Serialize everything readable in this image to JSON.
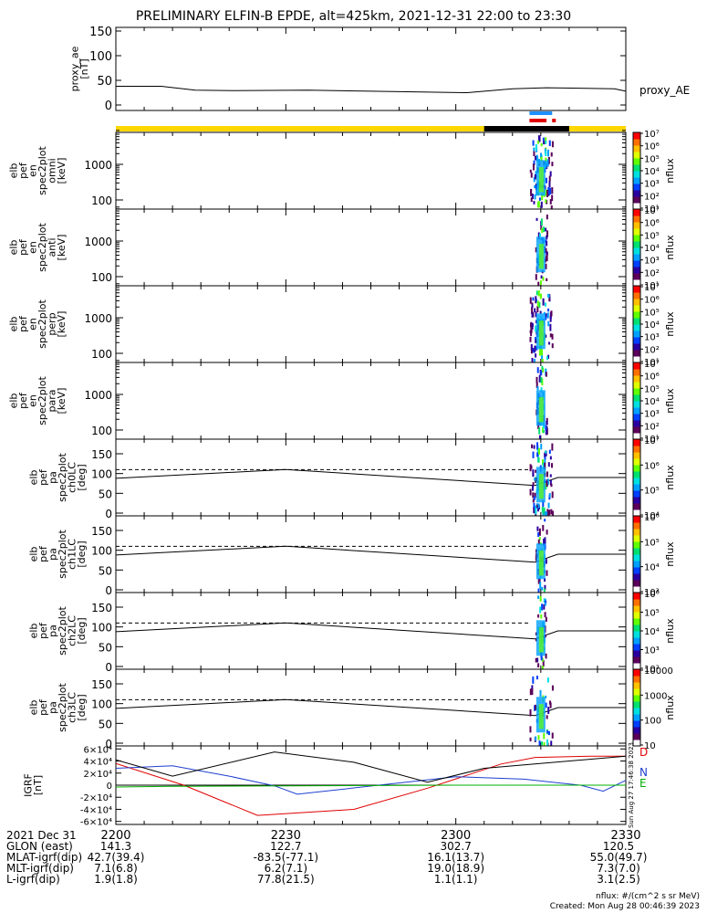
{
  "page": {
    "title": "PRELIMINARY ELFIN-B EPDE, alt=425km, 2021-12-31 22:00 to 23:30",
    "side_stamp": "Sun Aug 27 17:46:38 2023",
    "flux_units_note": "nflux: #/(cm^2 s sr MeV)",
    "created_note": "Created: Mon Aug 28 00:46:39 2023"
  },
  "colors": {
    "orbit_bar_day": "#ffd700",
    "orbit_bar_night": "#000000",
    "science_zone_blue": "#1e90ff",
    "science_zone_red": "#e00000",
    "bz_color": "#000000",
    "bn_color": "#1f3fd0",
    "be_color": "#00b000",
    "bd_color": "#e00000"
  },
  "footer": {
    "date_label": "2021 Dec 31",
    "rows": [
      {
        "label": "GLON (east)",
        "values": [
          "141.3",
          "122.7",
          "302.7",
          "120.5"
        ]
      },
      {
        "label": "MLAT-igrf(dip)",
        "values": [
          "42.7(39.4)",
          "-83.5(-77.1)",
          "16.1(13.7)",
          "55.0(49.7)"
        ]
      },
      {
        "label": "MLT-igrf(dip)",
        "values": [
          "7.1(6.8)",
          "6.2(7.1)",
          "19.0(18.9)",
          "7.3(7.0)"
        ]
      },
      {
        "label": "L-igrf(dip)",
        "values": [
          "1.9(1.8)",
          "77.8(21.5)",
          "1.1(1.1)",
          "3.1(2.5)"
        ]
      }
    ]
  },
  "chart_data": [
    {
      "type": "line",
      "panel": "proxy_ae",
      "ylabel": [
        "proxy_ae",
        "[nT]"
      ],
      "series": [
        {
          "name": "proxy_AE",
          "x": [
            "22:00",
            "22:08",
            "22:14",
            "22:21",
            "22:34",
            "22:45",
            "23:02",
            "23:10",
            "23:16",
            "23:28",
            "23:30"
          ],
          "values": [
            38,
            38,
            30,
            29,
            30,
            28,
            25,
            33,
            35,
            33,
            28
          ]
        }
      ],
      "ylim": [
        0,
        150
      ],
      "yticks": [
        "0",
        "50",
        "100",
        "150"
      ]
    },
    {
      "type": "timeline",
      "panel": "orbit_bars",
      "night_interval": [
        "23:05",
        "23:20"
      ],
      "science_zone_intervals": [
        {
          "color": "blue",
          "from": "23:13",
          "to": "23:17"
        },
        {
          "color": "red",
          "from": "23:13",
          "to": "23:16"
        },
        {
          "color": "red",
          "from": "23:17",
          "to": "23:17.5"
        }
      ]
    },
    {
      "type": "heatmap",
      "panel": "spec_omni",
      "ylabel": [
        "elb",
        "pef",
        "en",
        "spec2plot",
        "omni",
        "[keV]"
      ],
      "yscale": "log",
      "yticks": [
        "100",
        "1000"
      ],
      "colorbar": {
        "label": "nflux",
        "ticks": [
          "10¹",
          "10²",
          "10³",
          "10⁴",
          "10⁵",
          "10⁶",
          "10⁷"
        ]
      },
      "activity_interval": [
        "23:13",
        "23:17"
      ]
    },
    {
      "type": "heatmap",
      "panel": "spec_anti",
      "ylabel": [
        "elb",
        "pef",
        "en",
        "spec2plot",
        "anti",
        "[keV]"
      ],
      "yscale": "log",
      "yticks": [
        "100",
        "1000"
      ],
      "colorbar": {
        "label": "nflux",
        "ticks": [
          "10¹",
          "10²",
          "10³",
          "10⁴",
          "10⁵",
          "10⁶",
          "10⁷"
        ]
      },
      "activity_interval": [
        "23:14",
        "23:16"
      ]
    },
    {
      "type": "heatmap",
      "panel": "spec_perp",
      "ylabel": [
        "elb",
        "pef",
        "en",
        "spec2plot",
        "perp",
        "[keV]"
      ],
      "yscale": "log",
      "yticks": [
        "100",
        "1000"
      ],
      "colorbar": {
        "label": "nflux",
        "ticks": [
          "10¹",
          "10²",
          "10³",
          "10⁴",
          "10⁵",
          "10⁶",
          "10⁷"
        ]
      },
      "activity_interval": [
        "23:13",
        "23:17"
      ]
    },
    {
      "type": "heatmap",
      "panel": "spec_para",
      "ylabel": [
        "elb",
        "pef",
        "en",
        "spec2plot",
        "para",
        "[keV]"
      ],
      "yscale": "log",
      "yticks": [
        "100",
        "1000"
      ],
      "colorbar": {
        "label": "nflux",
        "ticks": [
          "10¹",
          "10²",
          "10³",
          "10⁴",
          "10⁵",
          "10⁶",
          "10⁷"
        ]
      },
      "activity_interval": [
        "23:14",
        "23:16"
      ]
    },
    {
      "type": "heatmap",
      "panel": "pa_ch0",
      "ylabel": [
        "elb",
        "pef",
        "pa",
        "spec2plot",
        "ch0LC",
        "[deg]"
      ],
      "ylim": [
        0,
        180
      ],
      "yticks": [
        "0",
        "50",
        "100",
        "150"
      ],
      "colorbar": {
        "label": "nflux",
        "ticks": [
          "10⁴",
          "10⁵",
          "10⁶",
          "10⁷"
        ]
      },
      "activity_interval": [
        "23:13",
        "23:17"
      ]
    },
    {
      "type": "heatmap",
      "panel": "pa_ch1",
      "ylabel": [
        "elb",
        "pef",
        "pa",
        "spec2plot",
        "ch1LC",
        "[deg]"
      ],
      "ylim": [
        0,
        180
      ],
      "yticks": [
        "0",
        "50",
        "100",
        "150"
      ],
      "colorbar": {
        "label": "nflux",
        "ticks": [
          "10³",
          "10⁴",
          "10⁵",
          "10⁶"
        ]
      },
      "activity_interval": [
        "23:14",
        "23:16"
      ]
    },
    {
      "type": "heatmap",
      "panel": "pa_ch2",
      "ylabel": [
        "elb",
        "pef",
        "pa",
        "spec2plot",
        "ch2LC",
        "[deg]"
      ],
      "ylim": [
        0,
        180
      ],
      "yticks": [
        "0",
        "50",
        "100",
        "150"
      ],
      "colorbar": {
        "label": "nflux",
        "ticks": [
          "10²",
          "10³",
          "10⁴",
          "10⁵",
          "10⁶"
        ]
      },
      "activity_interval": [
        "23:14",
        "23:16"
      ]
    },
    {
      "type": "heatmap",
      "panel": "pa_ch3",
      "ylabel": [
        "elb",
        "pef",
        "pa",
        "spec2plot",
        "ch3LC",
        "[deg]"
      ],
      "ylim": [
        0,
        180
      ],
      "yticks": [
        "0",
        "50",
        "100",
        "150"
      ],
      "colorbar": {
        "label": "nflux",
        "ticks": [
          "10",
          "100",
          "1000",
          "10000"
        ]
      },
      "activity_interval": [
        "23:13",
        "23:17"
      ]
    },
    {
      "type": "line",
      "panel": "igrf",
      "ylabel": [
        "IGRF",
        "[nT]"
      ],
      "ylim": [
        -65000,
        65000
      ],
      "yticks": [
        "-6×10⁴",
        "-4×10⁴",
        "-2×10⁴",
        "0",
        "2×10⁴",
        "4×10⁴",
        "6×10⁴"
      ],
      "legend": [
        "D",
        "N",
        "E"
      ],
      "series": [
        {
          "name": "D",
          "x": [
            "22:00",
            "22:12",
            "22:25",
            "22:42",
            "22:55",
            "23:08",
            "23:14",
            "23:24",
            "23:30"
          ],
          "values": [
            36000,
            0,
            -50000,
            -40000,
            -5000,
            35000,
            46000,
            48000,
            48000
          ]
        },
        {
          "name": "N",
          "x": [
            "22:00",
            "22:10",
            "22:20",
            "22:28",
            "22:32",
            "23:00",
            "23:12",
            "23:22",
            "23:26",
            "23:30"
          ],
          "values": [
            28000,
            32000,
            15000,
            -1000,
            -15000,
            14000,
            10000,
            0,
            -10000,
            8000
          ]
        },
        {
          "name": "E",
          "x": [
            "22:00",
            "22:10",
            "22:30",
            "23:00",
            "23:30"
          ],
          "values": [
            -3000,
            -2000,
            -1000,
            0,
            0
          ]
        },
        {
          "name": "",
          "x": [
            "22:00",
            "22:10",
            "22:28",
            "22:42",
            "22:55",
            "23:05",
            "23:30"
          ],
          "values": [
            42000,
            15000,
            55000,
            38000,
            5000,
            28000,
            48000
          ]
        }
      ]
    }
  ],
  "time_axis": {
    "ticks": [
      "2200",
      "2230",
      "2300",
      "2330"
    ],
    "range": [
      "22:00",
      "23:30"
    ]
  }
}
